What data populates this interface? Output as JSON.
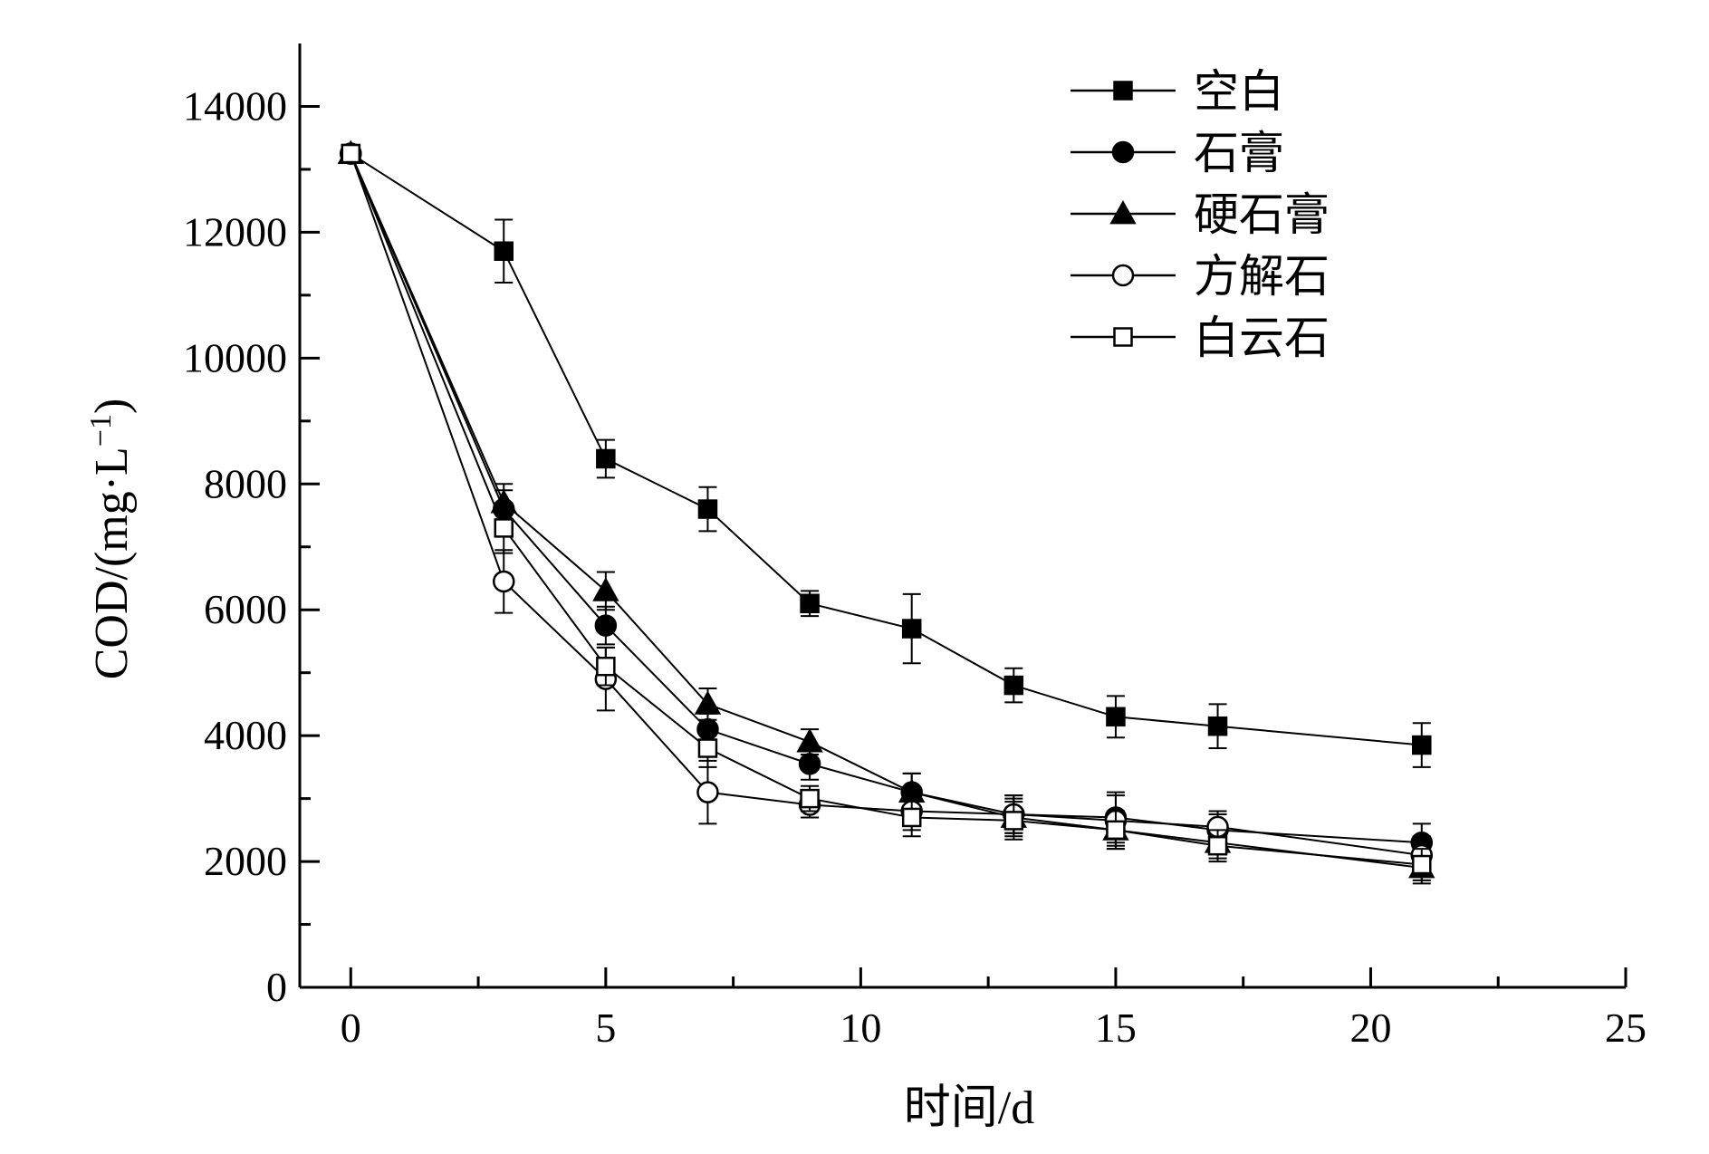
{
  "chart_data": {
    "type": "line",
    "xlabel": "时间/d",
    "ylabel": "COD/(mg·L",
    "ylabel_superscript": "−1",
    "ylabel_suffix": ")",
    "xlim": [
      -1,
      25
    ],
    "ylim": [
      0,
      15000
    ],
    "x_ticks": [
      0,
      5,
      10,
      15,
      20,
      25
    ],
    "y_ticks": [
      0,
      2000,
      4000,
      6000,
      8000,
      10000,
      12000,
      14000
    ],
    "x": [
      0,
      3,
      5,
      7,
      9,
      11,
      13,
      15,
      17,
      21
    ],
    "legend_position": "top-right",
    "series": [
      {
        "name": "空白",
        "marker": "square-filled",
        "values": [
          13250,
          11700,
          8400,
          7600,
          6100,
          5700,
          4800,
          4300,
          4150,
          3850
        ],
        "errors": [
          0,
          500,
          300,
          350,
          200,
          550,
          270,
          330,
          350,
          350
        ]
      },
      {
        "name": "石膏",
        "marker": "circle-filled",
        "values": [
          13250,
          7600,
          5750,
          4100,
          3550,
          3100,
          2750,
          2700,
          2500,
          2300
        ],
        "errors": [
          0,
          300,
          300,
          250,
          250,
          300,
          300,
          400,
          250,
          300
        ]
      },
      {
        "name": "硬石膏",
        "marker": "triangle-filled",
        "values": [
          13250,
          7700,
          6300,
          4500,
          3900,
          3100,
          2700,
          2500,
          2300,
          1900
        ],
        "errors": [
          0,
          300,
          300,
          250,
          200,
          300,
          300,
          300,
          250,
          250
        ]
      },
      {
        "name": "方解石",
        "marker": "circle-open",
        "values": [
          13250,
          6450,
          4900,
          3100,
          2900,
          2800,
          2750,
          2650,
          2550,
          2100
        ],
        "errors": [
          0,
          500,
          500,
          500,
          200,
          300,
          300,
          400,
          250,
          300
        ]
      },
      {
        "name": "白云石",
        "marker": "square-open",
        "values": [
          13250,
          7300,
          5100,
          3800,
          3000,
          2700,
          2650,
          2500,
          2250,
          1950
        ],
        "errors": [
          0,
          400,
          300,
          300,
          200,
          300,
          300,
          300,
          250,
          250
        ]
      }
    ]
  }
}
